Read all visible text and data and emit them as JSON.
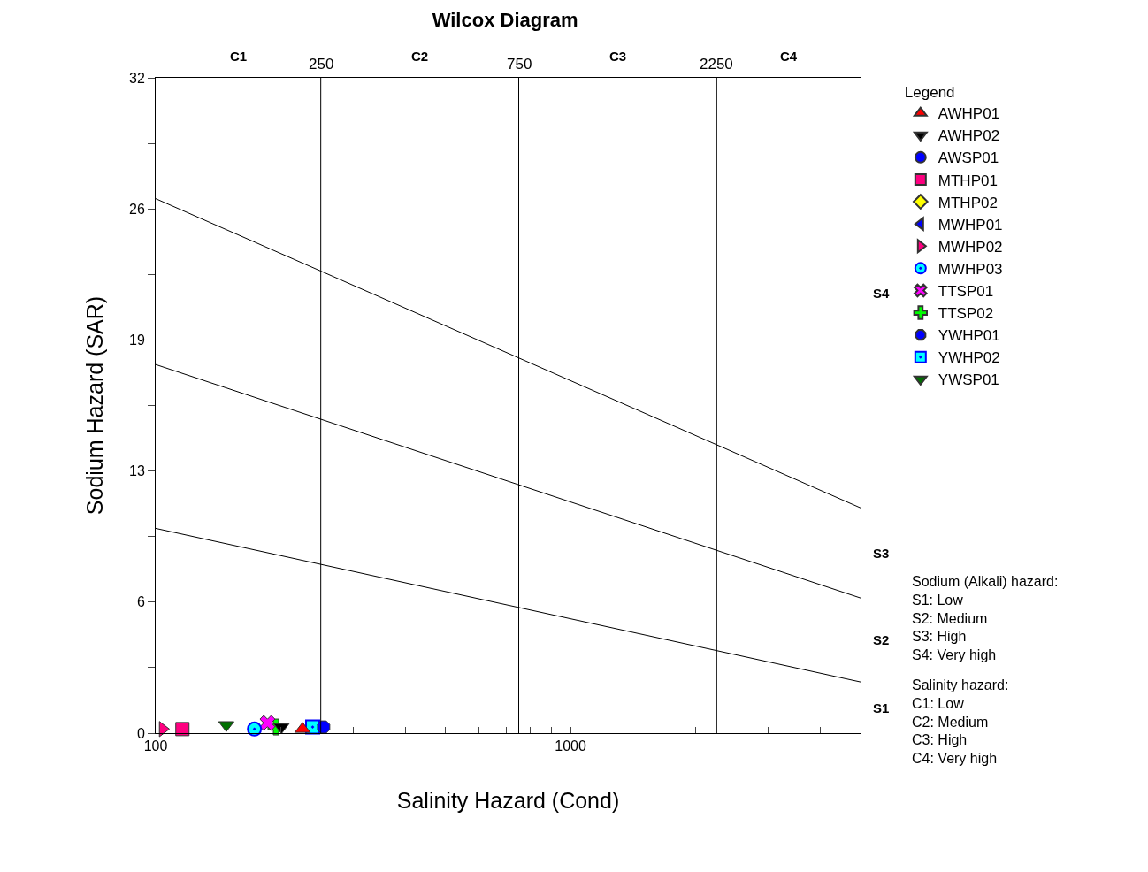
{
  "chart_data": {
    "type": "scatter",
    "title": "Wilcox Diagram",
    "xlabel": "Salinity Hazard (Cond)",
    "ylabel": "Sodium Hazard (SAR)",
    "legend_title": "Legend",
    "legend": "top right",
    "grid": false,
    "log": "x",
    "xlim": [
      100,
      5000
    ],
    "xticks": [
      100,
      {
        "value": 200,
        "label": null
      },
      {
        "value": 300,
        "label": null
      },
      {
        "value": 400,
        "label": null
      },
      {
        "value": 500,
        "label": null
      },
      {
        "value": 600,
        "label": null
      },
      {
        "value": 700,
        "label": null
      },
      {
        "value": 800,
        "label": null
      },
      {
        "value": 900,
        "label": null
      },
      1000,
      {
        "value": 2000,
        "label": null
      },
      {
        "value": 3000,
        "label": null
      },
      {
        "value": 4000,
        "label": null
      },
      {
        "value": 5000,
        "label": null
      }
    ],
    "ylim": [
      0,
      32
    ],
    "yticks": [
      0,
      {
        "value": 3.2,
        "label": null
      },
      {
        "value": 6.4,
        "label": "6"
      },
      {
        "value": 9.6,
        "label": null
      },
      {
        "value": 12.8,
        "label": "13"
      },
      {
        "value": 16,
        "label": null
      },
      {
        "value": 19.2,
        "label": "19"
      },
      {
        "value": 22.4,
        "label": null
      },
      {
        "value": 25.6,
        "label": "26"
      },
      {
        "value": 28.8,
        "label": null
      },
      32
    ],
    "ref_lines": [
      {
        "axis": "x",
        "value": 250,
        "label": "250",
        "color": "#000000"
      },
      {
        "axis": "x",
        "value": 750,
        "label": "750",
        "color": "#000000"
      },
      {
        "axis": "x",
        "value": 2250,
        "label": "2250",
        "color": "#000000"
      }
    ],
    "series": [
      {
        "type": "line",
        "color": "#000000",
        "x": [
          100,
          5000
        ],
        "values": [
          26.1,
          11.0
        ],
        "marker": "none"
      },
      {
        "type": "line",
        "color": "#000000",
        "x": [
          100,
          5000
        ],
        "values": [
          18.0,
          6.6
        ],
        "marker": "none"
      },
      {
        "type": "line",
        "color": "#000000",
        "x": [
          100,
          5000
        ],
        "values": [
          10.0,
          2.5
        ],
        "marker": "none"
      },
      {
        "name": "AWHP01",
        "color": "#ff0000",
        "marker": "triangle-up",
        "x": [
          226
        ],
        "values": [
          0.2
        ]
      },
      {
        "name": "AWHP02",
        "color": "#000000",
        "marker": "triangle-down",
        "x": [
          201
        ],
        "values": [
          0.3
        ]
      },
      {
        "name": "AWSP01",
        "color": "#0000ff",
        "marker": "circle",
        "x": [
          null
        ],
        "values": [
          null
        ]
      },
      {
        "name": "MTHP01",
        "color": "#ff0080",
        "marker": "square",
        "x": [
          116
        ],
        "values": [
          0.2
        ]
      },
      {
        "name": "MTHP02",
        "color": "#ffff00",
        "marker": "diamond",
        "x": [
          null
        ],
        "values": [
          null
        ]
      },
      {
        "name": "MWHP01",
        "color": "#0000ff",
        "marker": "triangle-left",
        "x": [
          null
        ],
        "values": [
          null
        ]
      },
      {
        "name": "MWHP02",
        "color": "#ff0080",
        "marker": "triangle-right",
        "x": [
          104
        ],
        "values": [
          0.2
        ]
      },
      {
        "name": "MWHP03",
        "color": "#00ffff",
        "marker": "circle-dot",
        "x": [
          173
        ],
        "values": [
          0.2
        ]
      },
      {
        "name": "TTSP01",
        "color": "#ff00ff",
        "marker": "x",
        "x": [
          186
        ],
        "values": [
          0.5
        ]
      },
      {
        "name": "TTSP02",
        "color": "#00ff00",
        "marker": "cross",
        "x": [
          195
        ],
        "values": [
          0.3
        ]
      },
      {
        "name": "YWHP01",
        "color": "#0000ff",
        "marker": "star",
        "x": [
          254
        ],
        "values": [
          0.3
        ]
      },
      {
        "name": "YWHP02",
        "color": "#00ffff",
        "marker": "square-dot",
        "x": [
          239
        ],
        "values": [
          0.3
        ]
      },
      {
        "name": "YWSP01",
        "color": "#007000",
        "marker": "triangle-down",
        "x": [
          148
        ],
        "values": [
          0.4
        ]
      }
    ],
    "annotations": [
      "C1",
      "C2",
      "C3",
      "C4",
      "S4",
      "S3",
      "S2",
      "S1",
      "Sodium (Alkali) hazard:\nS1: Low\nS2: Medium\nS3: High\nS4: Very high",
      "Salinity hazard:\nC1: Low\nC2: Medium\nC3: High\nC4: Very high"
    ]
  }
}
